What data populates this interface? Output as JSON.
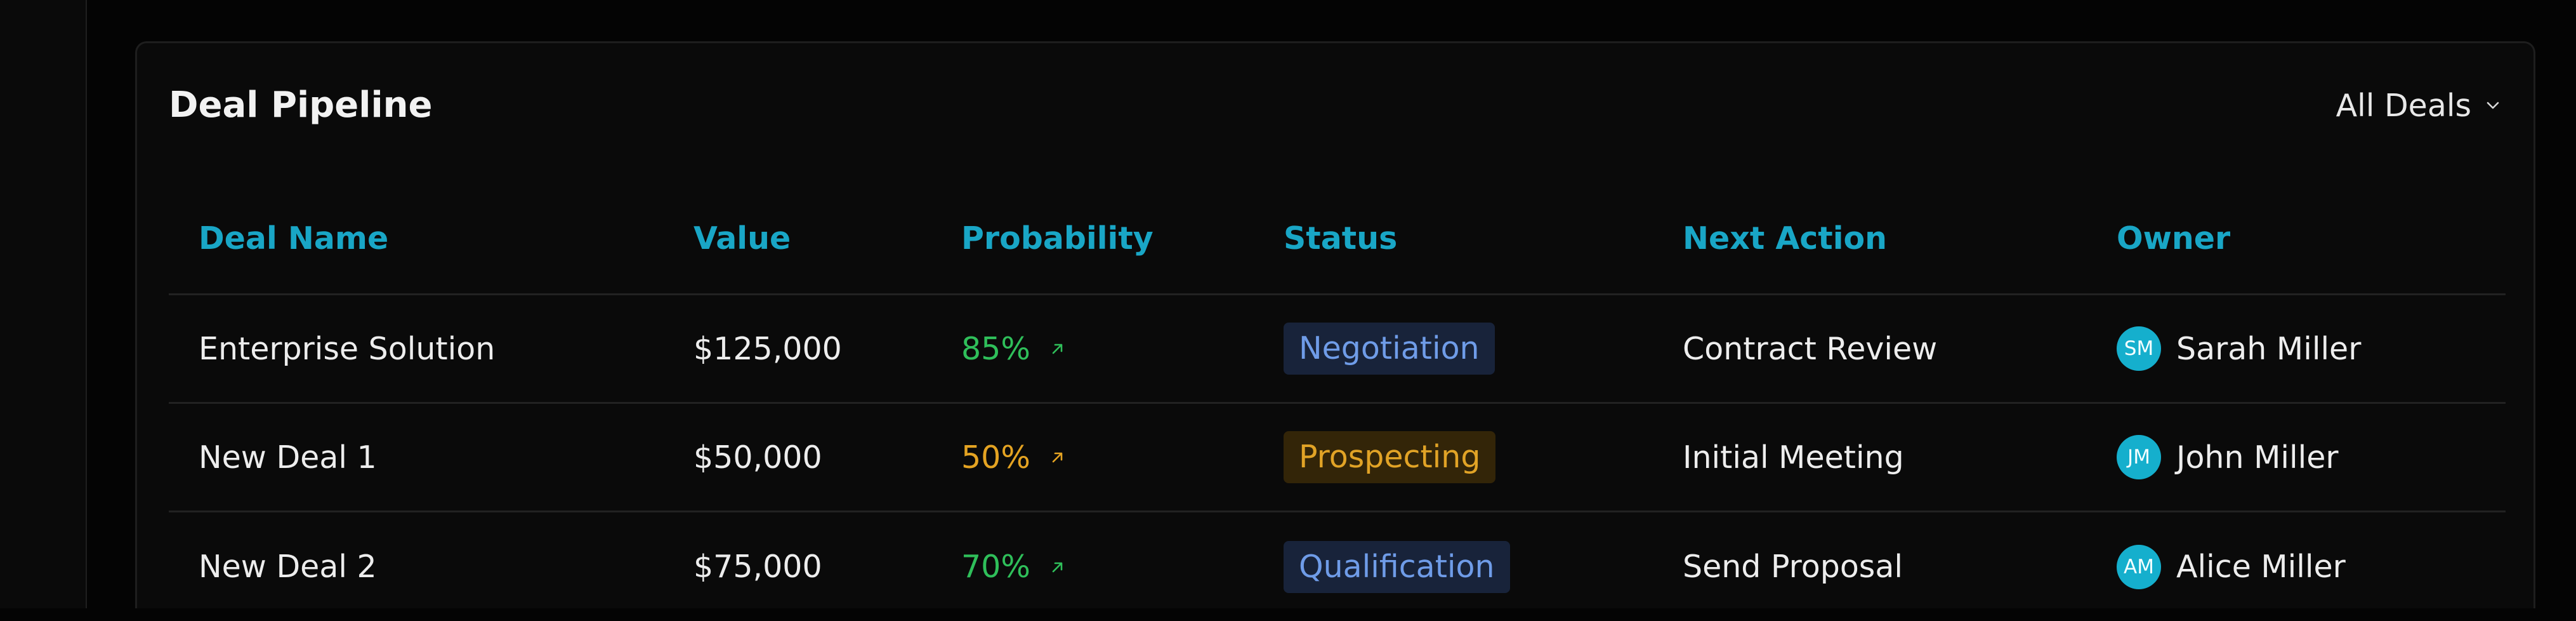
{
  "card": {
    "title": "Deal Pipeline",
    "filter": {
      "label": "All Deals",
      "icon": "chevron-down-icon"
    }
  },
  "table": {
    "columns": [
      "Deal Name",
      "Value",
      "Probability",
      "Status",
      "Next Action",
      "Owner"
    ],
    "rows": [
      {
        "name": "Enterprise Solution",
        "value": "$125,000",
        "probability": "85%",
        "probability_color": "#2fbf5a",
        "status": "Negotiation",
        "status_text_color": "#6f9ce8",
        "status_bg_color": "#18233a",
        "next_action": "Contract Review",
        "owner_initials": "SM",
        "owner": "Sarah Miller"
      },
      {
        "name": "New Deal 1",
        "value": "$50,000",
        "probability": "50%",
        "probability_color": "#e4a322",
        "status": "Prospecting",
        "status_text_color": "#e1a326",
        "status_bg_color": "#332508",
        "next_action": "Initial Meeting",
        "owner_initials": "JM",
        "owner": "John Miller"
      },
      {
        "name": "New Deal 2",
        "value": "$75,000",
        "probability": "70%",
        "probability_color": "#2fbf5a",
        "status": "Qualification",
        "status_text_color": "#6f9ce8",
        "status_bg_color": "#18233a",
        "next_action": "Send Proposal",
        "owner_initials": "AM",
        "owner": "Alice Miller"
      }
    ]
  },
  "colors": {
    "accent": "#19a6c6",
    "avatar_bg": "#15afcd"
  },
  "icons": {
    "trend": "arrow-up-right-icon"
  }
}
